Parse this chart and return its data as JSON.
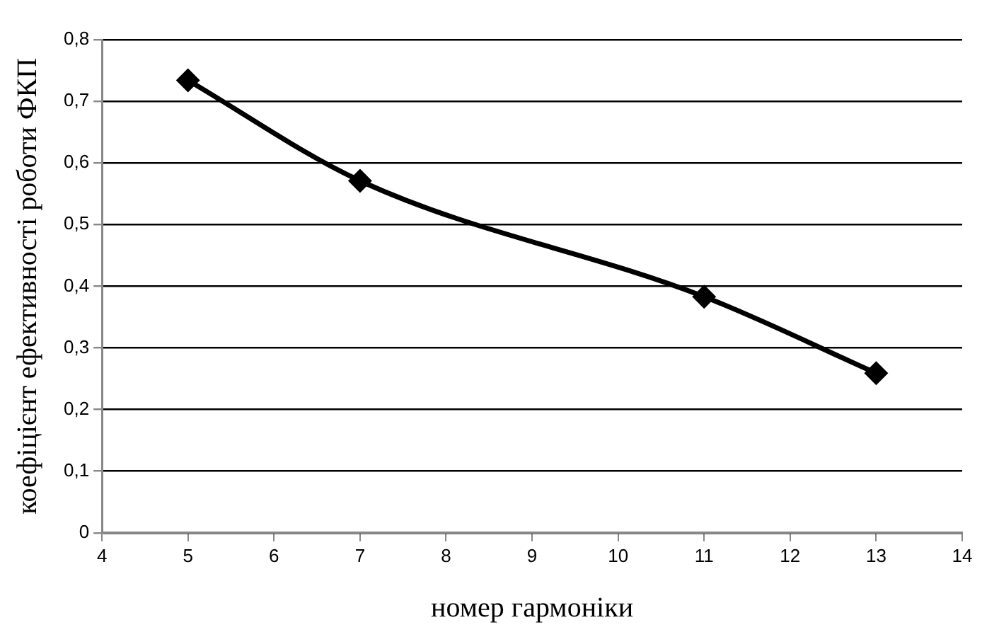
{
  "chart_data": {
    "type": "line",
    "xlabel": "номер гармоніки",
    "ylabel": "коефіцієнт ефективності роботи ФКП",
    "x": [
      5,
      7,
      11,
      13
    ],
    "series": [
      {
        "color": "#000000",
        "values": [
          0.734,
          0.571,
          0.383,
          0.259
        ]
      }
    ],
    "xlim": [
      4,
      14
    ],
    "xticks": [
      4,
      5,
      6,
      7,
      8,
      9,
      10,
      11,
      12,
      13,
      14
    ],
    "ylim": [
      0,
      0.8
    ],
    "yticks": [
      {
        "value": 0,
        "label": "0"
      },
      {
        "value": 0.1,
        "label": "0,1"
      },
      {
        "value": 0.2,
        "label": "0,2"
      },
      {
        "value": 0.3,
        "label": "0,3"
      },
      {
        "value": 0.4,
        "label": "0,4"
      },
      {
        "value": 0.5,
        "label": "0,5"
      },
      {
        "value": 0.6,
        "label": "0,6"
      },
      {
        "value": 0.7,
        "label": "0,7"
      },
      {
        "value": 0.8,
        "label": "0,8"
      }
    ],
    "grid": "y",
    "legend": false,
    "marker": "diamond",
    "line_style": "solid"
  }
}
